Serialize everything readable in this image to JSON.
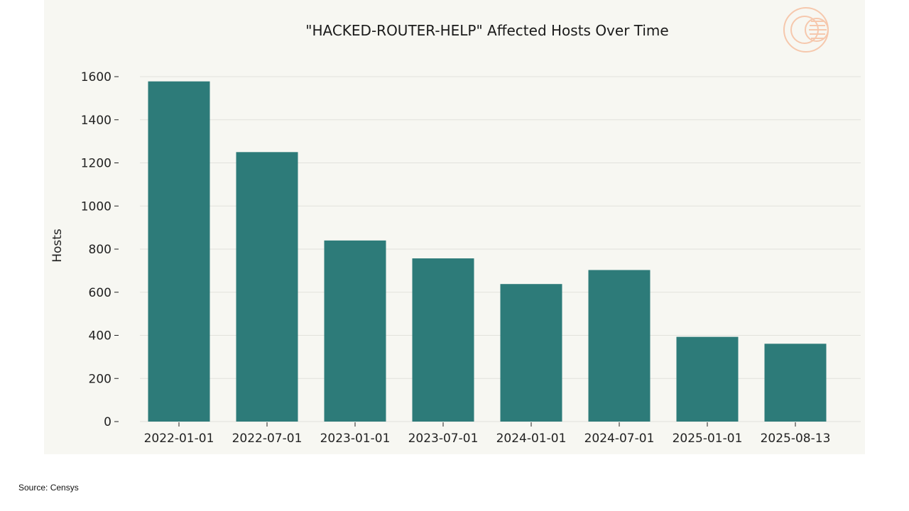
{
  "chart_data": {
    "type": "bar",
    "title": "\"HACKED-ROUTER-HELP\" Affected Hosts Over Time",
    "xlabel": "",
    "ylabel": "Hosts",
    "categories": [
      "2022-01-01",
      "2022-07-01",
      "2023-01-01",
      "2023-07-01",
      "2024-01-01",
      "2024-07-01",
      "2025-01-01",
      "2025-08-13"
    ],
    "values": [
      1578,
      1250,
      840,
      757,
      638,
      703,
      393,
      361
    ],
    "ylim": [
      0,
      1600
    ],
    "yticks": [
      0,
      200,
      400,
      600,
      800,
      1000,
      1200,
      1400,
      1600
    ],
    "grid": true,
    "legend": "none",
    "bar_color": "#2d7b79",
    "background_color": "#f7f7f2"
  },
  "source": "Source: Censys",
  "colors": {
    "logo": "#f6c8ad",
    "grid": "#e2e2dc",
    "axis_text": "#222222"
  }
}
